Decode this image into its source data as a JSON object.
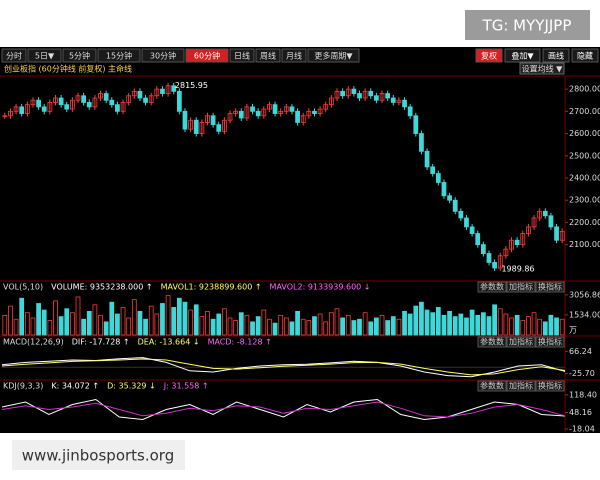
{
  "tg": "TG: MYYJJPP",
  "watermark": "www.jinbosports.org",
  "toolbar": {
    "tabs": [
      "分时",
      "5日▼",
      "5分钟",
      "15分钟",
      "30分钟",
      "60分钟",
      "日线",
      "周线",
      "月线",
      "更多周期▼"
    ],
    "active": 5,
    "right": [
      "复权",
      "叠加▼",
      "画线",
      "隐藏"
    ]
  },
  "header": {
    "title": "创业板指 (60分钟线 前复权) 主命线",
    "setting": "设置均线 ▼"
  },
  "price": {
    "ylim": [
      1950,
      2850
    ],
    "yticks": [
      {
        "value": 2800,
        "label": "2800.00"
      },
      {
        "value": 2700,
        "label": "2700.00"
      },
      {
        "value": 2600,
        "label": "2600.00"
      },
      {
        "value": 2500,
        "label": "2500.00"
      },
      {
        "value": 2400,
        "label": "2400.00"
      },
      {
        "value": 2300,
        "label": "2300.00"
      },
      {
        "value": 2200,
        "label": "2200.00"
      },
      {
        "value": 2100,
        "label": "2100.00"
      }
    ],
    "up_color": "#ff3b3b",
    "down_color": "#3fd8d8",
    "closes": [
      2680,
      2700,
      2720,
      2690,
      2730,
      2750,
      2720,
      2700,
      2740,
      2760,
      2730,
      2710,
      2750,
      2770,
      2740,
      2720,
      2760,
      2780,
      2750,
      2730,
      2700,
      2740,
      2770,
      2790,
      2760,
      2740,
      2770,
      2800,
      2780,
      2815,
      2790,
      2700,
      2620,
      2660,
      2600,
      2650,
      2680,
      2640,
      2610,
      2660,
      2690,
      2700,
      2670,
      2720,
      2700,
      2680,
      2710,
      2730,
      2690,
      2700,
      2720,
      2700,
      2650,
      2680,
      2700,
      2690,
      2710,
      2730,
      2760,
      2790,
      2770,
      2800,
      2780,
      2760,
      2790,
      2770,
      2750,
      2780,
      2760,
      2740,
      2750,
      2720,
      2680,
      2600,
      2520,
      2450,
      2420,
      2380,
      2320,
      2300,
      2250,
      2220,
      2180,
      2150,
      2100,
      2060,
      2020,
      1995,
      2050,
      2080,
      2120,
      2100,
      2150,
      2180,
      2220,
      2250,
      2230,
      2180,
      2120,
      2160
    ],
    "high_label": {
      "value": 2815.95,
      "label": "2815.95"
    },
    "low_label": {
      "value": 1989.86,
      "label": "1989.86"
    }
  },
  "volume": {
    "header": [
      "VOL(5,10)",
      "VOLUME: 9353238.000 ↑",
      "MAVOL1: 9238899.600 ↑",
      "MAVOL2: 9133939.600 ↓"
    ],
    "header_colors": [
      "#dddddd",
      "#ffffff",
      "#ffff66",
      "#ff66ff"
    ],
    "buttons": [
      "参数数",
      "加指标",
      "换指标"
    ],
    "ylim": [
      0,
      3200
    ],
    "yticks": [
      3056.86,
      {
        "value": 1534,
        "label": "1534.00"
      }
    ],
    "unit": "万",
    "values": [
      1500,
      2200,
      1200,
      2800,
      1700,
      1300,
      2400,
      1900,
      1100,
      2600,
      1400,
      2000,
      1700,
      2900,
      1200,
      1800,
      2300,
      1500,
      1000,
      2500,
      1600,
      2100,
      1300,
      2700,
      1800,
      1200,
      2200,
      1600,
      2400,
      3000,
      2100,
      2800,
      2500,
      1900,
      2300,
      1400,
      1800,
      1200,
      1600,
      2000,
      1300,
      1100,
      1700,
      1500,
      1000,
      1400,
      1900,
      1200,
      900,
      1500,
      1300,
      1000,
      1800,
      1200,
      1100,
      1400,
      1600,
      1000,
      1700,
      2000,
      1300,
      1500,
      1100,
      1200,
      1700,
      1000,
      1300,
      1500,
      1100,
      1400,
      1200,
      1800,
      1600,
      2200,
      2500,
      1900,
      1700,
      2100,
      1500,
      1800,
      1400,
      1600,
      1300,
      1900,
      1500,
      1700,
      1400,
      2300,
      2000,
      1600,
      1300,
      1500,
      1100,
      1400,
      1700,
      1200,
      1000,
      1500,
      1300,
      1200
    ]
  },
  "macd": {
    "header": [
      "MACD(12,26,9)",
      "DIF: -17.728 ↑",
      "DEA: -13.664 ↓",
      "MACD: -8.128 ↑"
    ],
    "header_colors": [
      "#dddddd",
      "#ffffff",
      "#ffff66",
      "#ff66ff"
    ],
    "buttons": [
      "参数数",
      "加指标",
      "换指标"
    ],
    "ylim": [
      -45,
      80
    ],
    "yticks": [
      66.24,
      {
        "value": -25.7,
        "label": "-25.70"
      }
    ],
    "dif": [
      10,
      20,
      25,
      30,
      28,
      35,
      40,
      20,
      -15,
      -20,
      -5,
      5,
      10,
      12,
      18,
      25,
      20,
      5,
      -20,
      -35,
      -40,
      -20,
      5,
      10,
      -17.7
    ],
    "dea": [
      5,
      12,
      18,
      24,
      27,
      30,
      34,
      30,
      12,
      -5,
      -8,
      -2,
      4,
      8,
      13,
      19,
      20,
      13,
      -5,
      -20,
      -32,
      -28,
      -10,
      2,
      -13.7
    ],
    "dif_color": "#ffffff",
    "dea_color": "#ffff66"
  },
  "kdj": {
    "header": [
      "KDJ(9,3,3)",
      "K: 34.072 ↑",
      "D: 35.329 ↓",
      "J: 31.558 ↑"
    ],
    "header_colors": [
      "#dddddd",
      "#ffffff",
      "#ffff66",
      "#ff66ff"
    ],
    "buttons": [
      "参数数",
      "加指标",
      "换指标"
    ],
    "ylim": [
      -30,
      130
    ],
    "yticks": [
      {
        "value": 118.4,
        "label": "118.40"
      },
      48.16,
      {
        "value": -18.04,
        "label": "-18.04"
      }
    ],
    "k": [
      70,
      90,
      40,
      80,
      100,
      30,
      20,
      60,
      80,
      40,
      90,
      60,
      30,
      80,
      50,
      90,
      100,
      40,
      20,
      30,
      60,
      90,
      80,
      40,
      34
    ],
    "d": [
      60,
      75,
      60,
      70,
      85,
      60,
      35,
      45,
      65,
      55,
      75,
      70,
      45,
      65,
      60,
      75,
      90,
      65,
      35,
      30,
      45,
      70,
      80,
      60,
      35
    ],
    "k_color": "#ffffff",
    "d_color": "#cc33cc"
  }
}
